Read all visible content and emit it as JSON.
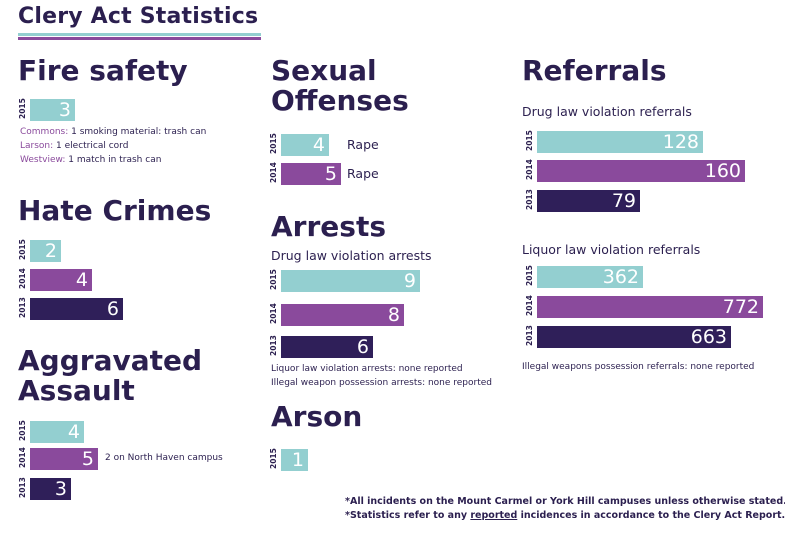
{
  "title": "Clery Act Statistics",
  "colors": {
    "2015": "#93cfd0",
    "2014": "#8a4a9c",
    "2013": "#2f1f59",
    "title_rule_top": "#93cfd0",
    "title_rule_bottom": "#8a4a9c"
  },
  "chart_data": [
    {
      "type": "bar",
      "title": "Fire safety",
      "categories": [
        "2015"
      ],
      "values": [
        3
      ],
      "notes": [
        {
          "label": "Commons:",
          "text": " 1 smoking material: trash can"
        },
        {
          "label": "Larson:",
          "text": " 1 electrical cord"
        },
        {
          "label": "Westview:",
          "text": " 1 match in trash can"
        }
      ]
    },
    {
      "type": "bar",
      "title": "Hate Crimes",
      "categories": [
        "2015",
        "2014",
        "2013"
      ],
      "values": [
        2,
        4,
        6
      ]
    },
    {
      "type": "bar",
      "title": "Aggravated Assault",
      "categories": [
        "2015",
        "2014",
        "2013"
      ],
      "values": [
        4,
        5,
        3
      ],
      "annotations": [
        "",
        "2 on North Haven campus",
        ""
      ]
    },
    {
      "type": "bar",
      "title": "Sexual Offenses",
      "categories": [
        "2015",
        "2014"
      ],
      "values": [
        4,
        5
      ],
      "annotations": [
        "Rape",
        "Rape"
      ]
    },
    {
      "type": "bar",
      "title": "Arrests",
      "subtitle": "Drug law violation arrests",
      "categories": [
        "2015",
        "2014",
        "2013"
      ],
      "values": [
        9,
        8,
        6
      ],
      "notes": [
        {
          "label": "",
          "text": "Liquor law violation arrests: none reported"
        },
        {
          "label": "",
          "text": "Illegal weapon possession arrests: none reported"
        }
      ]
    },
    {
      "type": "bar",
      "title": "Arson",
      "categories": [
        "2015"
      ],
      "values": [
        1
      ]
    },
    {
      "type": "bar",
      "title": "Referrals",
      "subtitle": "Drug law violation referrals",
      "categories": [
        "2015",
        "2014",
        "2013"
      ],
      "values": [
        128,
        160,
        79
      ]
    },
    {
      "type": "bar",
      "title": "",
      "subtitle": "Liquor law violation referrals",
      "categories": [
        "2015",
        "2014",
        "2013"
      ],
      "values": [
        362,
        772,
        663
      ],
      "notes": [
        {
          "label": "",
          "text": "Illegal weapons possession referrals: none reported"
        }
      ]
    }
  ],
  "footnotes": {
    "line1": "*All incidents on the Mount Carmel or York Hill campuses unless otherwise stated.",
    "line2_before": "*Statistics refer to any ",
    "line2_underlined": "reported",
    "line2_after": " incidences in accordance to the Clery Act Report."
  }
}
